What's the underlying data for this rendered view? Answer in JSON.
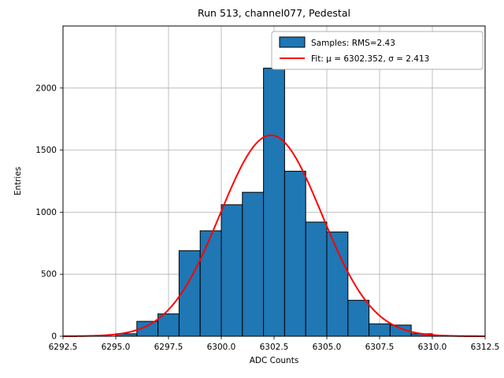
{
  "chart_data": {
    "type": "bar",
    "subtype": "histogram",
    "title": "Run 513, channel077, Pedestal",
    "xlabel": "ADC Counts",
    "ylabel": "Entries",
    "xlim": [
      6292.5,
      6312.5
    ],
    "ylim": [
      0,
      2500
    ],
    "x_ticks": [
      6292.5,
      6295.0,
      6297.5,
      6300.0,
      6302.5,
      6305.0,
      6307.5,
      6310.0,
      6312.5
    ],
    "y_ticks": [
      0,
      500,
      1000,
      1500,
      2000
    ],
    "grid": true,
    "grid_color": "#b0b0b0",
    "bar_color": "#1f77b4",
    "bar_edge_color": "#000000",
    "fit_color": "#ff0000",
    "bin_width": 1,
    "bin_left_edges": [
      6295,
      6296,
      6297,
      6298,
      6299,
      6300,
      6301,
      6302,
      6303,
      6304,
      6305,
      6306,
      6307,
      6308,
      6309
    ],
    "bin_counts": [
      20,
      120,
      180,
      690,
      850,
      1060,
      1160,
      2160,
      1330,
      920,
      840,
      290,
      100,
      90,
      20
    ],
    "fit": {
      "mu": 6302.352,
      "sigma": 2.413,
      "amplitude": 1620,
      "rms": 2.43
    },
    "legend": {
      "position": "upper right",
      "samples_label": "Samples: RMS=2.43",
      "fit_label": "Fit: μ = 6302.352, σ = 2.413"
    }
  }
}
